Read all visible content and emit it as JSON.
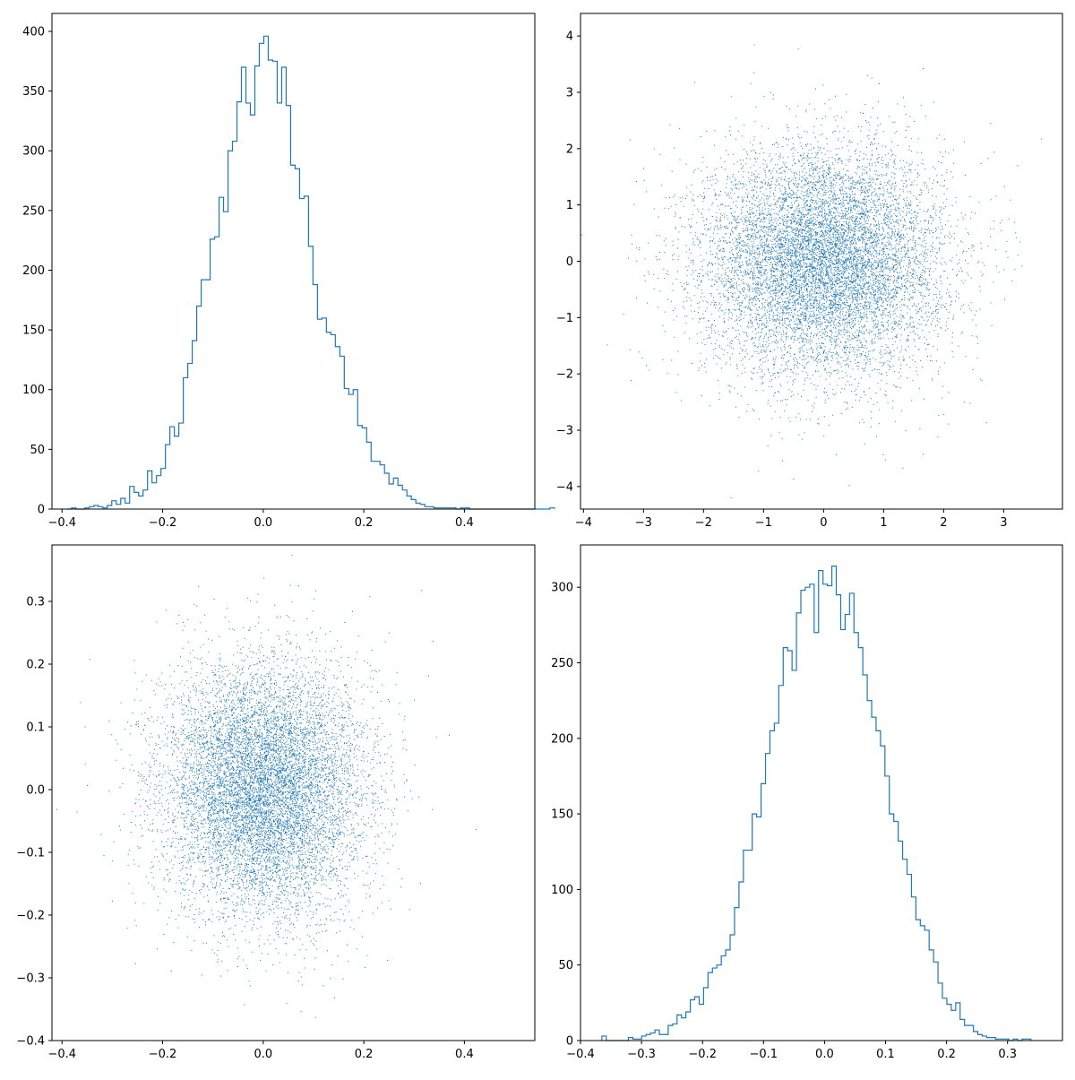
{
  "chart_data": [
    {
      "type": "histogram",
      "position": "top-left",
      "histtype": "step",
      "color": "#1f77b4",
      "xlim": [
        -0.42,
        0.54
      ],
      "ylim": [
        0,
        415
      ],
      "xticks": [
        "−0.4",
        "−0.2",
        "0.0",
        "0.2",
        "0.4"
      ],
      "xtick_values": [
        -0.4,
        -0.2,
        0.0,
        0.2,
        0.4
      ],
      "yticks": [
        "0",
        "50",
        "100",
        "150",
        "200",
        "250",
        "300",
        "350",
        "400"
      ],
      "ytick_values": [
        0,
        50,
        100,
        150,
        200,
        250,
        300,
        350,
        400
      ],
      "bin_start": -0.39,
      "bin_width": 0.00889,
      "counts": [
        0,
        1,
        0,
        0,
        1,
        2,
        3,
        2,
        1,
        3,
        7,
        4,
        9,
        5,
        19,
        14,
        11,
        16,
        32,
        22,
        28,
        34,
        54,
        69,
        61,
        72,
        110,
        122,
        141,
        170,
        192,
        192,
        226,
        228,
        261,
        249,
        300,
        308,
        341,
        370,
        340,
        330,
        371,
        390,
        396,
        376,
        375,
        340,
        370,
        338,
        288,
        285,
        260,
        262,
        220,
        188,
        159,
        160,
        148,
        146,
        136,
        128,
        101,
        96,
        100,
        70,
        68,
        56,
        40,
        40,
        37,
        30,
        21,
        26,
        20,
        16,
        11,
        8,
        5,
        4,
        2,
        2,
        1,
        1,
        1,
        1,
        1,
        0,
        1,
        1,
        0,
        0,
        0,
        0,
        0,
        0,
        0,
        0,
        0,
        0,
        0,
        0,
        0,
        0,
        0,
        0,
        0,
        0,
        1
      ]
    },
    {
      "type": "scatter",
      "position": "top-right",
      "marker": "pixel",
      "color": "#1f77b4",
      "distribution": {
        "n": 10000,
        "mean": [
          0,
          0
        ],
        "std": [
          1.0,
          1.0
        ]
      },
      "xlim": [
        -4.05,
        3.98
      ],
      "ylim": [
        -4.4,
        4.4
      ],
      "xticks": [
        "−4",
        "−3",
        "−2",
        "−1",
        "0",
        "1",
        "2",
        "3"
      ],
      "xtick_values": [
        -4,
        -3,
        -2,
        -1,
        0,
        1,
        2,
        3
      ],
      "yticks": [
        "−4",
        "−3",
        "−2",
        "−1",
        "0",
        "1",
        "2",
        "3",
        "4"
      ],
      "ytick_values": [
        -4,
        -3,
        -2,
        -1,
        0,
        1,
        2,
        3,
        4
      ]
    },
    {
      "type": "scatter",
      "position": "bottom-left",
      "marker": "pixel",
      "color": "#1f77b4",
      "distribution": {
        "n": 10000,
        "mean": [
          0,
          0
        ],
        "std": [
          0.1,
          0.1
        ]
      },
      "xlim": [
        -0.42,
        0.54
      ],
      "ylim": [
        -0.4,
        0.39
      ],
      "xticks": [
        "−0.4",
        "−0.2",
        "0.0",
        "0.2",
        "0.4"
      ],
      "xtick_values": [
        -0.4,
        -0.2,
        0.0,
        0.2,
        0.4
      ],
      "yticks": [
        "−0.4",
        "−0.3",
        "−0.2",
        "−0.1",
        "0.0",
        "0.1",
        "0.2",
        "0.3"
      ],
      "ytick_values": [
        -0.4,
        -0.3,
        -0.2,
        -0.1,
        0.0,
        0.1,
        0.2,
        0.3
      ]
    },
    {
      "type": "histogram",
      "position": "bottom-right",
      "histtype": "step",
      "color": "#1f77b4",
      "xlim": [
        -0.4,
        0.39
      ],
      "ylim": [
        0,
        328
      ],
      "xticks": [
        "−0.4",
        "−0.3",
        "−0.2",
        "−0.1",
        "0.0",
        "0.1",
        "0.2",
        "0.3"
      ],
      "xtick_values": [
        -0.4,
        -0.3,
        -0.2,
        -0.1,
        0.0,
        0.1,
        0.2,
        0.3
      ],
      "yticks": [
        "0",
        "50",
        "100",
        "150",
        "200",
        "250",
        "300"
      ],
      "ytick_values": [
        0,
        50,
        100,
        150,
        200,
        250,
        300
      ],
      "bin_start": -0.365,
      "bin_width": 0.00725,
      "counts": [
        3,
        0,
        0,
        0,
        0,
        0,
        2,
        1,
        1,
        3,
        4,
        5,
        7,
        4,
        4,
        10,
        11,
        17,
        15,
        19,
        27,
        29,
        24,
        35,
        45,
        48,
        50,
        56,
        60,
        70,
        88,
        105,
        126,
        126,
        150,
        148,
        170,
        190,
        205,
        210,
        235,
        260,
        258,
        245,
        283,
        298,
        300,
        302,
        270,
        311,
        302,
        301,
        314,
        295,
        272,
        282,
        296,
        270,
        260,
        242,
        225,
        214,
        205,
        195,
        175,
        150,
        145,
        132,
        120,
        110,
        95,
        80,
        76,
        73,
        60,
        52,
        38,
        28,
        24,
        20,
        25,
        14,
        10,
        10,
        6,
        4,
        3,
        2,
        2,
        1,
        1,
        1,
        0,
        1,
        0,
        1,
        1
      ]
    }
  ]
}
